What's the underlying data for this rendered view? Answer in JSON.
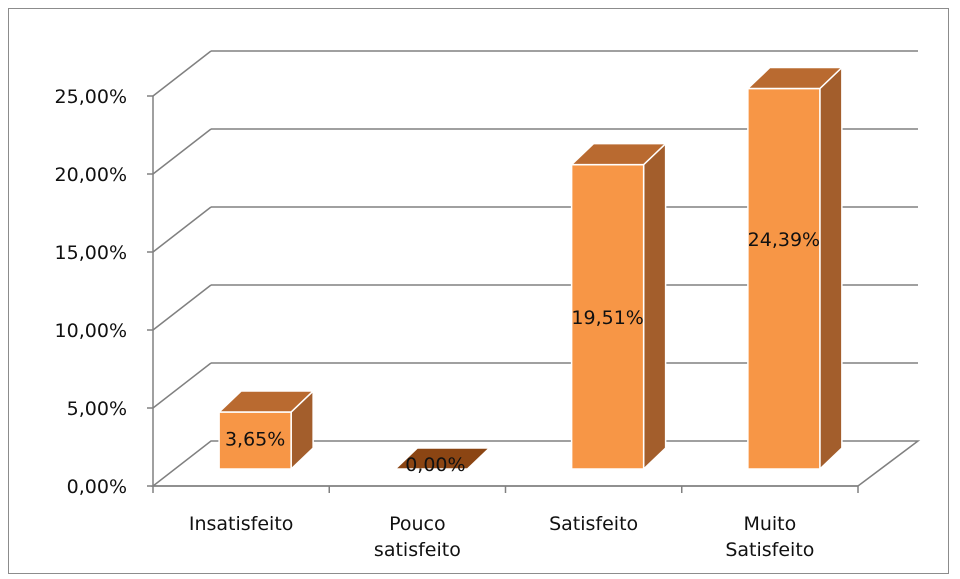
{
  "chart_data": {
    "type": "bar",
    "style": "3d-column",
    "categories": [
      [
        "Insatisfeito"
      ],
      [
        "Pouco",
        "satisfeito"
      ],
      [
        "Satisfeito"
      ],
      [
        "Muito",
        "Satisfeito"
      ]
    ],
    "values": [
      3.65,
      0.0,
      19.51,
      24.39
    ],
    "data_labels": [
      "3,65%",
      "0,00%",
      "19,51%",
      "24,39%"
    ],
    "y_ticks": [
      {
        "value": 0,
        "label": "0,00%"
      },
      {
        "value": 5,
        "label": "5,00%"
      },
      {
        "value": 10,
        "label": "10,00%"
      },
      {
        "value": 15,
        "label": "15,00%"
      },
      {
        "value": 20,
        "label": "20,00%"
      },
      {
        "value": 25,
        "label": "25,00%"
      }
    ],
    "ylim": [
      0,
      25
    ],
    "grid": true,
    "legend": "none",
    "colors": {
      "bar_front": "#F79646",
      "bar_side": "#A35E2C",
      "bar_top": "#B96A30",
      "gridline": "#808080",
      "floor": "#808080"
    }
  }
}
